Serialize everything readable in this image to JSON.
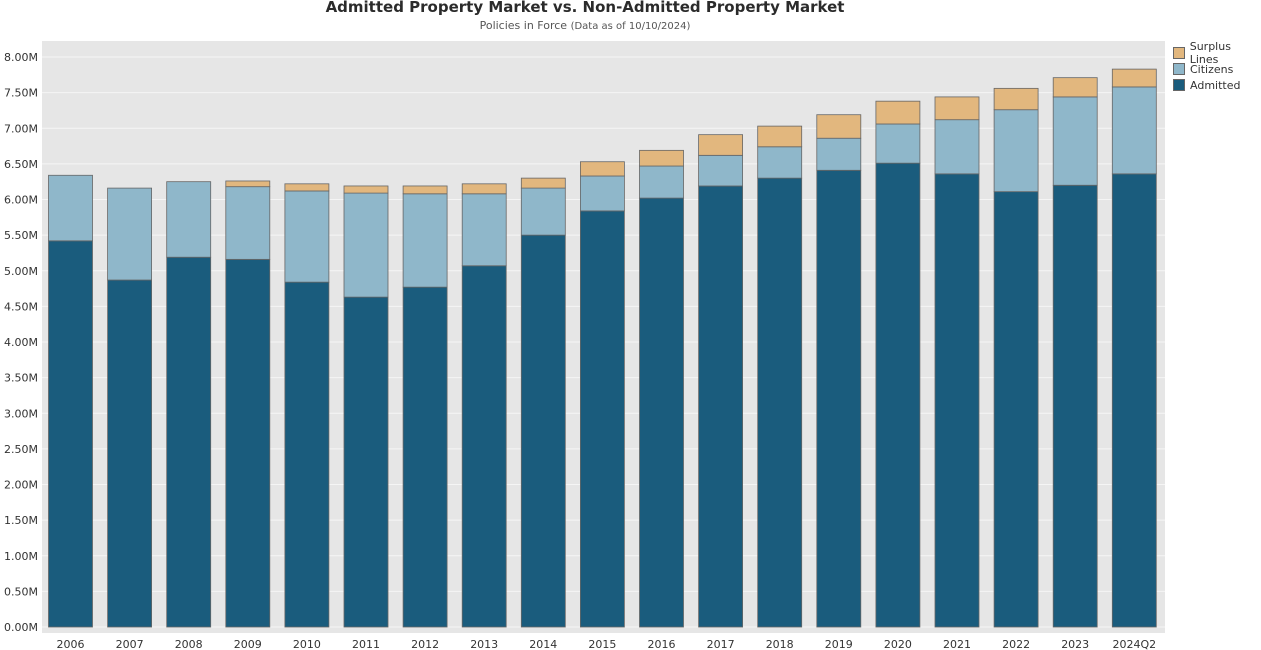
{
  "chart_data": {
    "type": "bar",
    "stacked": true,
    "title": "Admitted Property Market vs. Non-Admitted Property Market",
    "subtitle": "Policies in Force",
    "subtitle_note": "(Data as of 10/10/2024)",
    "xlabel": "",
    "ylabel": "",
    "ylim": [
      0,
      8.2
    ],
    "y_unit_suffix": "M",
    "yticks": [
      "0.00M",
      "0.50M",
      "1.00M",
      "1.50M",
      "2.00M",
      "2.50M",
      "3.00M",
      "3.50M",
      "4.00M",
      "4.50M",
      "5.00M",
      "5.50M",
      "6.00M",
      "6.50M",
      "7.00M",
      "7.50M",
      "8.00M"
    ],
    "ytick_values": [
      0,
      0.5,
      1,
      1.5,
      2,
      2.5,
      3,
      3.5,
      4,
      4.5,
      5,
      5.5,
      6,
      6.5,
      7,
      7.5,
      8
    ],
    "grid": true,
    "legend_position": "top-right",
    "categories": [
      "2006",
      "2007",
      "2008",
      "2009",
      "2010",
      "2011",
      "2012",
      "2013",
      "2014",
      "2015",
      "2016",
      "2017",
      "2018",
      "2019",
      "2020",
      "2021",
      "2022",
      "2023",
      "2024Q2"
    ],
    "series": [
      {
        "name": "Admitted",
        "color": "#1a5c7d",
        "values": [
          5.42,
          4.87,
          5.19,
          5.16,
          4.84,
          4.63,
          4.77,
          5.07,
          5.5,
          5.84,
          6.02,
          6.19,
          6.3,
          6.41,
          6.51,
          6.36,
          6.11,
          6.2,
          6.36
        ]
      },
      {
        "name": "Citizens",
        "color": "#8fb7ca",
        "values": [
          0.92,
          1.29,
          1.06,
          1.02,
          1.28,
          1.46,
          1.31,
          1.01,
          0.66,
          0.49,
          0.45,
          0.43,
          0.44,
          0.45,
          0.55,
          0.76,
          1.15,
          1.24,
          1.22
        ]
      },
      {
        "name": "Surplus Lines",
        "color": "#e2b77e",
        "values": [
          0,
          0,
          0,
          0.08,
          0.1,
          0.1,
          0.11,
          0.14,
          0.14,
          0.2,
          0.22,
          0.29,
          0.29,
          0.33,
          0.32,
          0.32,
          0.3,
          0.27,
          0.25
        ]
      }
    ],
    "legend": [
      "Surplus Lines",
      "Citizens",
      "Admitted"
    ]
  },
  "style": {
    "plot_bg": "#e6e6e6",
    "grid_color": "#f5f5f5",
    "bar_outline": "#666666"
  }
}
